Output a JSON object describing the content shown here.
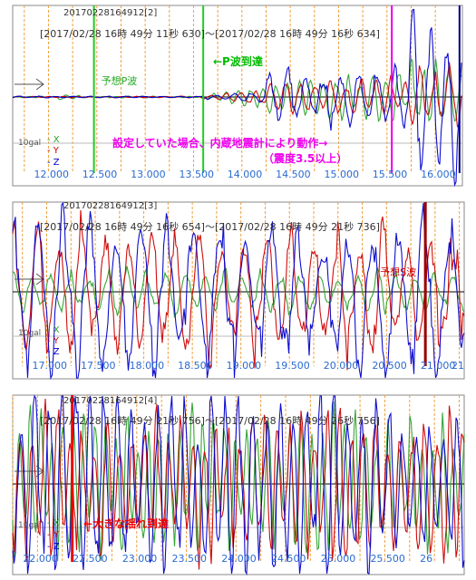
{
  "chart_data": [
    {
      "type": "line",
      "id": "20170228164912[2]",
      "time_range": "[2017/02/28 16時 49分 11秒 630]～[2017/02/28 16時 49分 16秒 634]",
      "scale_label": "10gal",
      "legend": [
        "X",
        "Y",
        "Z"
      ],
      "x_ticks": [
        "12.000",
        "12.500",
        "13.000",
        "13.500",
        "14.000",
        "14.500",
        "15.000",
        "15.500",
        "16.000"
      ],
      "xlim": [
        11.63,
        16.28
      ],
      "markers": [
        {
          "x": 12.47,
          "color": "#22cc22",
          "label": "予想P波"
        },
        {
          "x": 13.6,
          "color": "#22cc22",
          "label": ""
        },
        {
          "x": 15.55,
          "color": "#ee00ee",
          "label": ""
        },
        {
          "x": 16.25,
          "color": "#000080",
          "label": ""
        }
      ],
      "annotations": [
        {
          "text": "←P波到達",
          "color": "#00bb00"
        },
        {
          "text": "設定していた場合、内蔵地震計により動作→",
          "color": "#ee00ee"
        },
        {
          "text": "（震度3.5以上）",
          "color": "#ee00ee"
        }
      ],
      "series": [
        {
          "name": "X",
          "color": "#2ca02c"
        },
        {
          "name": "Y",
          "color": "#cc0000"
        },
        {
          "name": "Z",
          "color": "#0000cc"
        }
      ]
    },
    {
      "type": "line",
      "id": "20170228164912[3]",
      "time_range": "[2017/02/28 16時 49分 16秒 654]～[2017/02/28 16時 49分 21秒 736]",
      "scale_label": "10gal",
      "legend": [
        "X",
        "Y",
        "Z"
      ],
      "x_ticks": [
        "17.000",
        "17.500",
        "18.000",
        "18.500",
        "19.000",
        "19.500",
        "20.000",
        "20.500",
        "21.000",
        "21"
      ],
      "xlim": [
        16.65,
        21.3
      ],
      "markers": [
        {
          "x": 20.9,
          "color": "#990000",
          "label": "予想S波"
        }
      ],
      "annotations": [],
      "series": [
        {
          "name": "X",
          "color": "#2ca02c"
        },
        {
          "name": "Y",
          "color": "#cc0000"
        },
        {
          "name": "Z",
          "color": "#0000cc"
        }
      ]
    },
    {
      "type": "line",
      "id": "20170228164912[4]",
      "time_range": "[2017/02/28 16時 49分 21秒 756]～[2017/02/28 16時 49分 26秒 756]",
      "scale_label": "10gal",
      "legend": [
        "X",
        "Y",
        "Z"
      ],
      "x_ticks": [
        "22.000",
        "22.500",
        "23.000",
        "23.500",
        "24.000",
        "24.500",
        "25.000",
        "25.500",
        "26"
      ],
      "xlim": [
        21.75,
        26.3
      ],
      "markers": [
        {
          "x": 22.35,
          "color": "#ee0000",
          "label": ""
        }
      ],
      "annotations": [
        {
          "text": "←大きな揺れ到達",
          "color": "#ee0000"
        }
      ],
      "series": [
        {
          "name": "X",
          "color": "#2ca02c"
        },
        {
          "name": "Y",
          "color": "#cc0000"
        },
        {
          "name": "Z",
          "color": "#0000cc"
        }
      ]
    }
  ]
}
